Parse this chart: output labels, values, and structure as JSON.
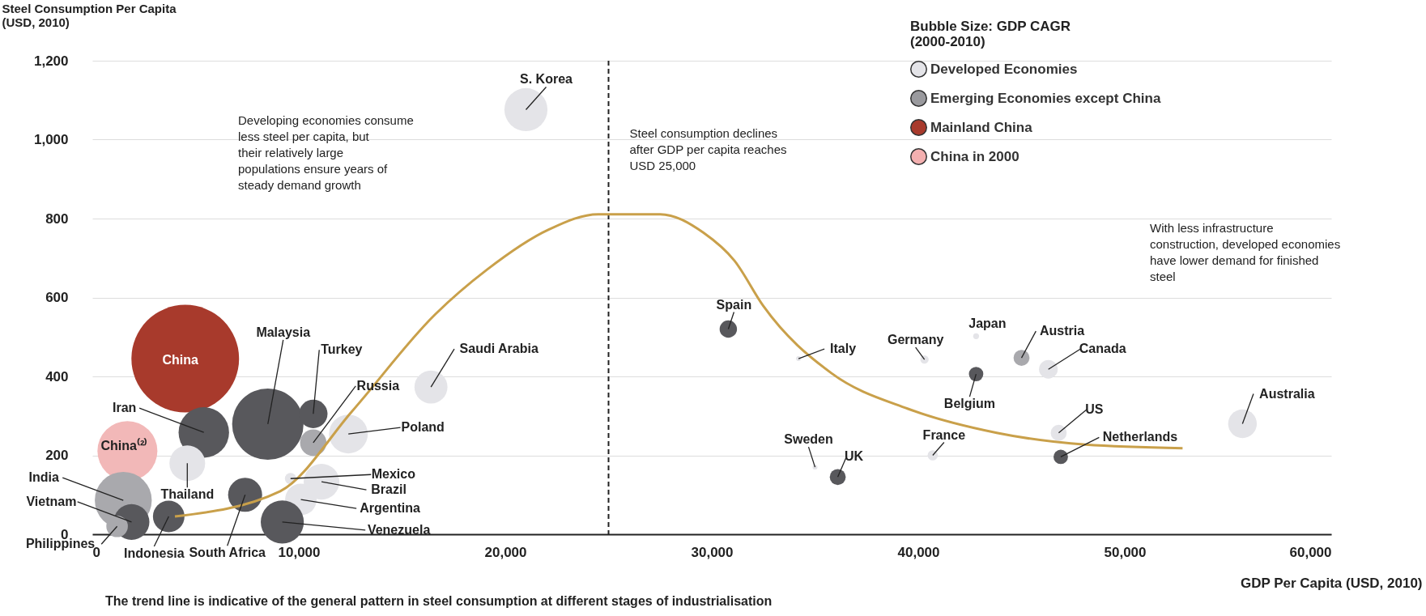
{
  "chart_data": {
    "type": "bubble",
    "xlabel": "GDP Per Capita (USD, 2010)",
    "ylabel": "Steel Consumption Per Capita\n(USD, 2010)",
    "legend_title": "Bubble Size: GDP CAGR\n(2000-2010)",
    "xlim": [
      0,
      60000
    ],
    "xticks": [
      0,
      {
        "value": 10000,
        "label": "10,000"
      },
      {
        "value": 20000,
        "label": "20,000"
      },
      {
        "value": 30000,
        "label": "30,000"
      },
      {
        "value": 40000,
        "label": "40,000"
      },
      {
        "value": 50000,
        "label": "50,000"
      },
      {
        "value": 60000,
        "label": "60,000"
      }
    ],
    "ylim": [
      0,
      1200
    ],
    "yticks": [
      0,
      200,
      400,
      600,
      800,
      {
        "value": 1000,
        "label": "1,000"
      },
      {
        "value": 1200,
        "label": "1,200"
      }
    ],
    "grid": "y",
    "legend": "top right",
    "relative": false,
    "series": [
      {
        "name": "Developed Economies",
        "type": "bubble",
        "color": "#e4e4e8",
        "x": [
          21000,
          30800,
          34200,
          40300,
          42800,
          45000,
          46300,
          42800,
          46800,
          46900,
          40700,
          36100,
          35000,
          55700
        ],
        "values": [
          1076,
          520,
          445,
          443,
          502,
          447,
          418,
          406,
          257,
          196,
          200,
          145,
          170,
          280
        ],
        "sizes": [
          0.16,
          0.026,
          0.002,
          0.006,
          0.003,
          0.022,
          0.03,
          0.018,
          0.022,
          0.018,
          0.009,
          0.022,
          0.002,
          0.071
        ],
        "colors": [
          "#e4e4e8",
          "#58585c",
          "#e4e4e8",
          "#e4e4e8",
          "#e4e4e8",
          "#a9a9ad",
          "#e4e4e8",
          "#58585c",
          "#e4e4e8",
          "#58585c",
          "#e4e4e8",
          "#58585c",
          "#e4e4e8",
          "#e4e4e8"
        ]
      },
      {
        "name": "Emerging Economies except China",
        "type": "bubble",
        "color": "#9a9a9e",
        "x": [
          5400,
          8500,
          10700,
          10700,
          12400,
          9600,
          11100,
          10100,
          9200,
          7400,
          4600,
          1500,
          1900,
          1200,
          3700,
          16400
        ],
        "values": [
          258,
          279,
          305,
          232,
          254,
          141,
          133,
          88,
          31,
          100,
          180,
          86,
          31,
          20,
          45,
          373
        ],
        "sizes": [
          0.22,
          0.44,
          0.07,
          0.06,
          0.13,
          0.011,
          0.11,
          0.086,
          0.16,
          0.1,
          0.11,
          0.28,
          0.11,
          0.04,
          0.086,
          0.094
        ],
        "colors": [
          "#58585c",
          "#58585c",
          "#58585c",
          "#a9a9ad",
          "#e4e4e8",
          "#e4e4e8",
          "#e4e4e8",
          "#e4e4e8",
          "#58585c",
          "#58585c",
          "#e4e4e8",
          "#a9a9ad",
          "#58585c",
          "#a9a9ad",
          "#58585c",
          "#e4e4e8"
        ]
      },
      {
        "name": "Mainland China",
        "type": "bubble",
        "color": "#a83a2c",
        "x": [
          4500
        ],
        "values": [
          445
        ],
        "sizes": [
          1
        ],
        "colors": [
          "#a83a2c"
        ]
      },
      {
        "name": "China in 2000",
        "type": "bubble",
        "color": "#f4b0b0",
        "x": [
          1700
        ],
        "values": [
          211
        ],
        "sizes": [
          0.31
        ],
        "colors": [
          "#f2b8b8"
        ]
      },
      {
        "type": "line",
        "color": "#c9a04a",
        "x": [
          4000,
          9100,
          12600,
          16600,
          19100,
          22100,
          24500,
          27500,
          29600,
          31100,
          32500,
          35800,
          39500,
          43800,
          48100,
          52800
        ],
        "values": [
          45,
          109,
          313,
          557,
          670,
          772,
          811,
          811,
          764,
          693,
          578,
          408,
          318,
          257,
          227,
          218
        ]
      }
    ],
    "ref_lines": [
      {
        "axis": "x",
        "value": 25000,
        "color": "#222222",
        "line_style": "dashed"
      }
    ],
    "annotations": [
      "Developing economies consume less steel per capita, but their relatively large populations ensure years of steady demand growth",
      {
        "text": "Steel consumption declines after GDP per capita reaches USD 25,000",
        "x": 25000,
        "y": 950
      },
      "With less infrastructure construction, developed economies have lower demand for finished steel",
      "The trend line is indicative of the general pattern in steel consumption at different stages of industrialisation",
      {
        "text": "S. Korea",
        "x": 21000,
        "y": 1076
      },
      {
        "text": "Spain",
        "x": 30800,
        "y": 520
      },
      {
        "text": "Italy",
        "x": 34200,
        "y": 445
      },
      {
        "text": "Germany",
        "x": 40300,
        "y": 443
      },
      {
        "text": "Japan",
        "x": 42800,
        "y": 502
      },
      {
        "text": "Austria",
        "x": 45000,
        "y": 447
      },
      {
        "text": "Canada",
        "x": 46300,
        "y": 418
      },
      {
        "text": "Belgium",
        "x": 42800,
        "y": 406
      },
      {
        "text": "US",
        "x": 46800,
        "y": 257
      },
      {
        "text": "Netherlands",
        "x": 46900,
        "y": 196
      },
      {
        "text": "France",
        "x": 40700,
        "y": 200
      },
      {
        "text": "UK",
        "x": 36100,
        "y": 145
      },
      {
        "text": "Sweden",
        "x": 35000,
        "y": 170
      },
      {
        "text": "Australia",
        "x": 55700,
        "y": 280
      },
      {
        "text": "Iran",
        "x": 5400,
        "y": 258
      },
      {
        "text": "Malaysia",
        "x": 8500,
        "y": 279
      },
      {
        "text": "Turkey",
        "x": 10700,
        "y": 305
      },
      {
        "text": "Russia",
        "x": 10700,
        "y": 232
      },
      {
        "text": "Poland",
        "x": 12400,
        "y": 254
      },
      {
        "text": "Mexico",
        "x": 9600,
        "y": 141
      },
      {
        "text": "Brazil",
        "x": 11100,
        "y": 133
      },
      {
        "text": "Argentina",
        "x": 10100,
        "y": 88
      },
      {
        "text": "Venezuela",
        "x": 9200,
        "y": 31
      },
      {
        "text": "South Africa",
        "x": 7400,
        "y": 100
      },
      {
        "text": "Thailand",
        "x": 4600,
        "y": 180
      },
      {
        "text": "India",
        "x": 1500,
        "y": 86
      },
      {
        "text": "Vietnam",
        "x": 1900,
        "y": 31
      },
      {
        "text": "Philippines",
        "x": 1200,
        "y": 20
      },
      {
        "text": "Indonesia",
        "x": 3700,
        "y": 45
      },
      {
        "text": "Saudi Arabia",
        "x": 16400,
        "y": 373
      },
      {
        "text": "China",
        "x": 4500,
        "y": 445
      },
      {
        "text": "China⁽²⁾",
        "x": 1700,
        "y": 211
      }
    ]
  }
}
